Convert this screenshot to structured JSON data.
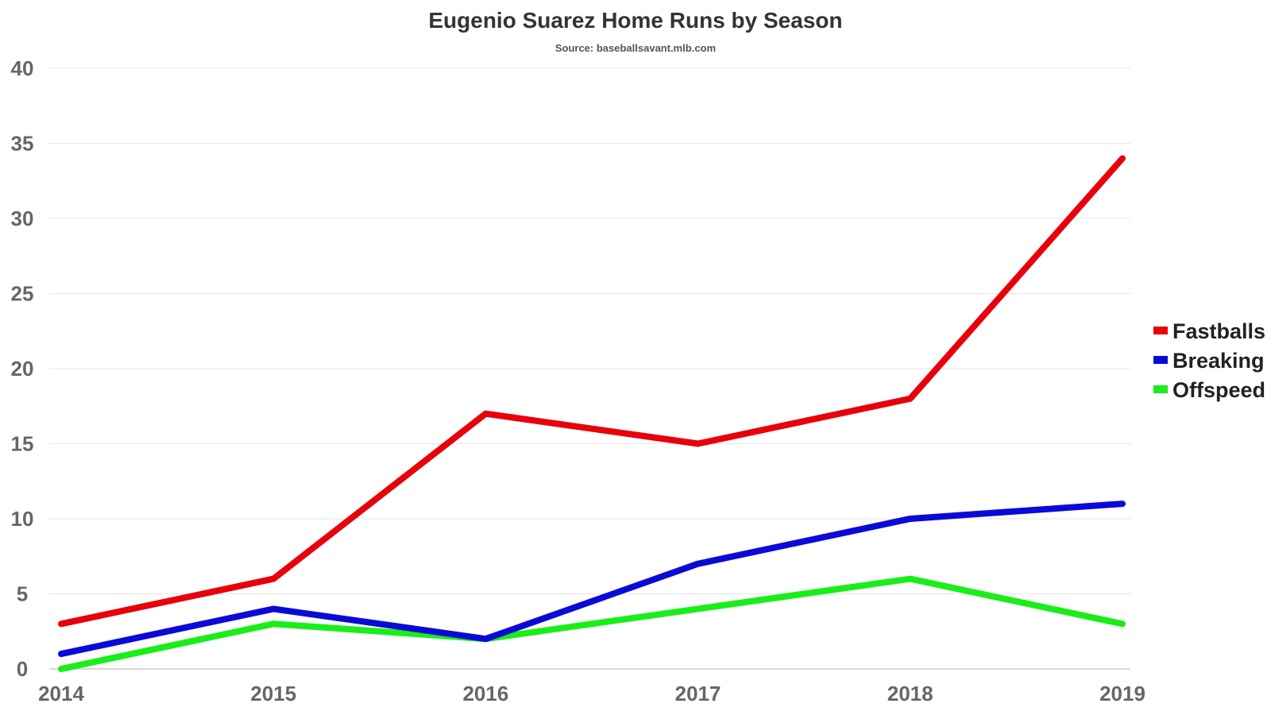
{
  "chart_data": {
    "type": "line",
    "title": "Eugenio Suarez Home Runs by Season",
    "subtitle": "Source: baseballsavant.mlb.com",
    "xlabel": "",
    "ylabel": "",
    "x": [
      "2014",
      "2015",
      "2016",
      "2017",
      "2018",
      "2019"
    ],
    "y_ticks": [
      "0",
      "5",
      "10",
      "15",
      "20",
      "25",
      "30",
      "35",
      "40"
    ],
    "ylim": [
      0,
      40
    ],
    "grid": true,
    "legend_position": "right",
    "series": [
      {
        "name": "Fastballs",
        "color": "#e8000b",
        "values": [
          3,
          6,
          17,
          15,
          18,
          34
        ]
      },
      {
        "name": "Breaking",
        "color": "#0a0ad8",
        "values": [
          1,
          4,
          2,
          7,
          10,
          11
        ]
      },
      {
        "name": "Offspeed",
        "color": "#1aee1a",
        "values": [
          0,
          3,
          2,
          4,
          6,
          3
        ]
      }
    ]
  }
}
